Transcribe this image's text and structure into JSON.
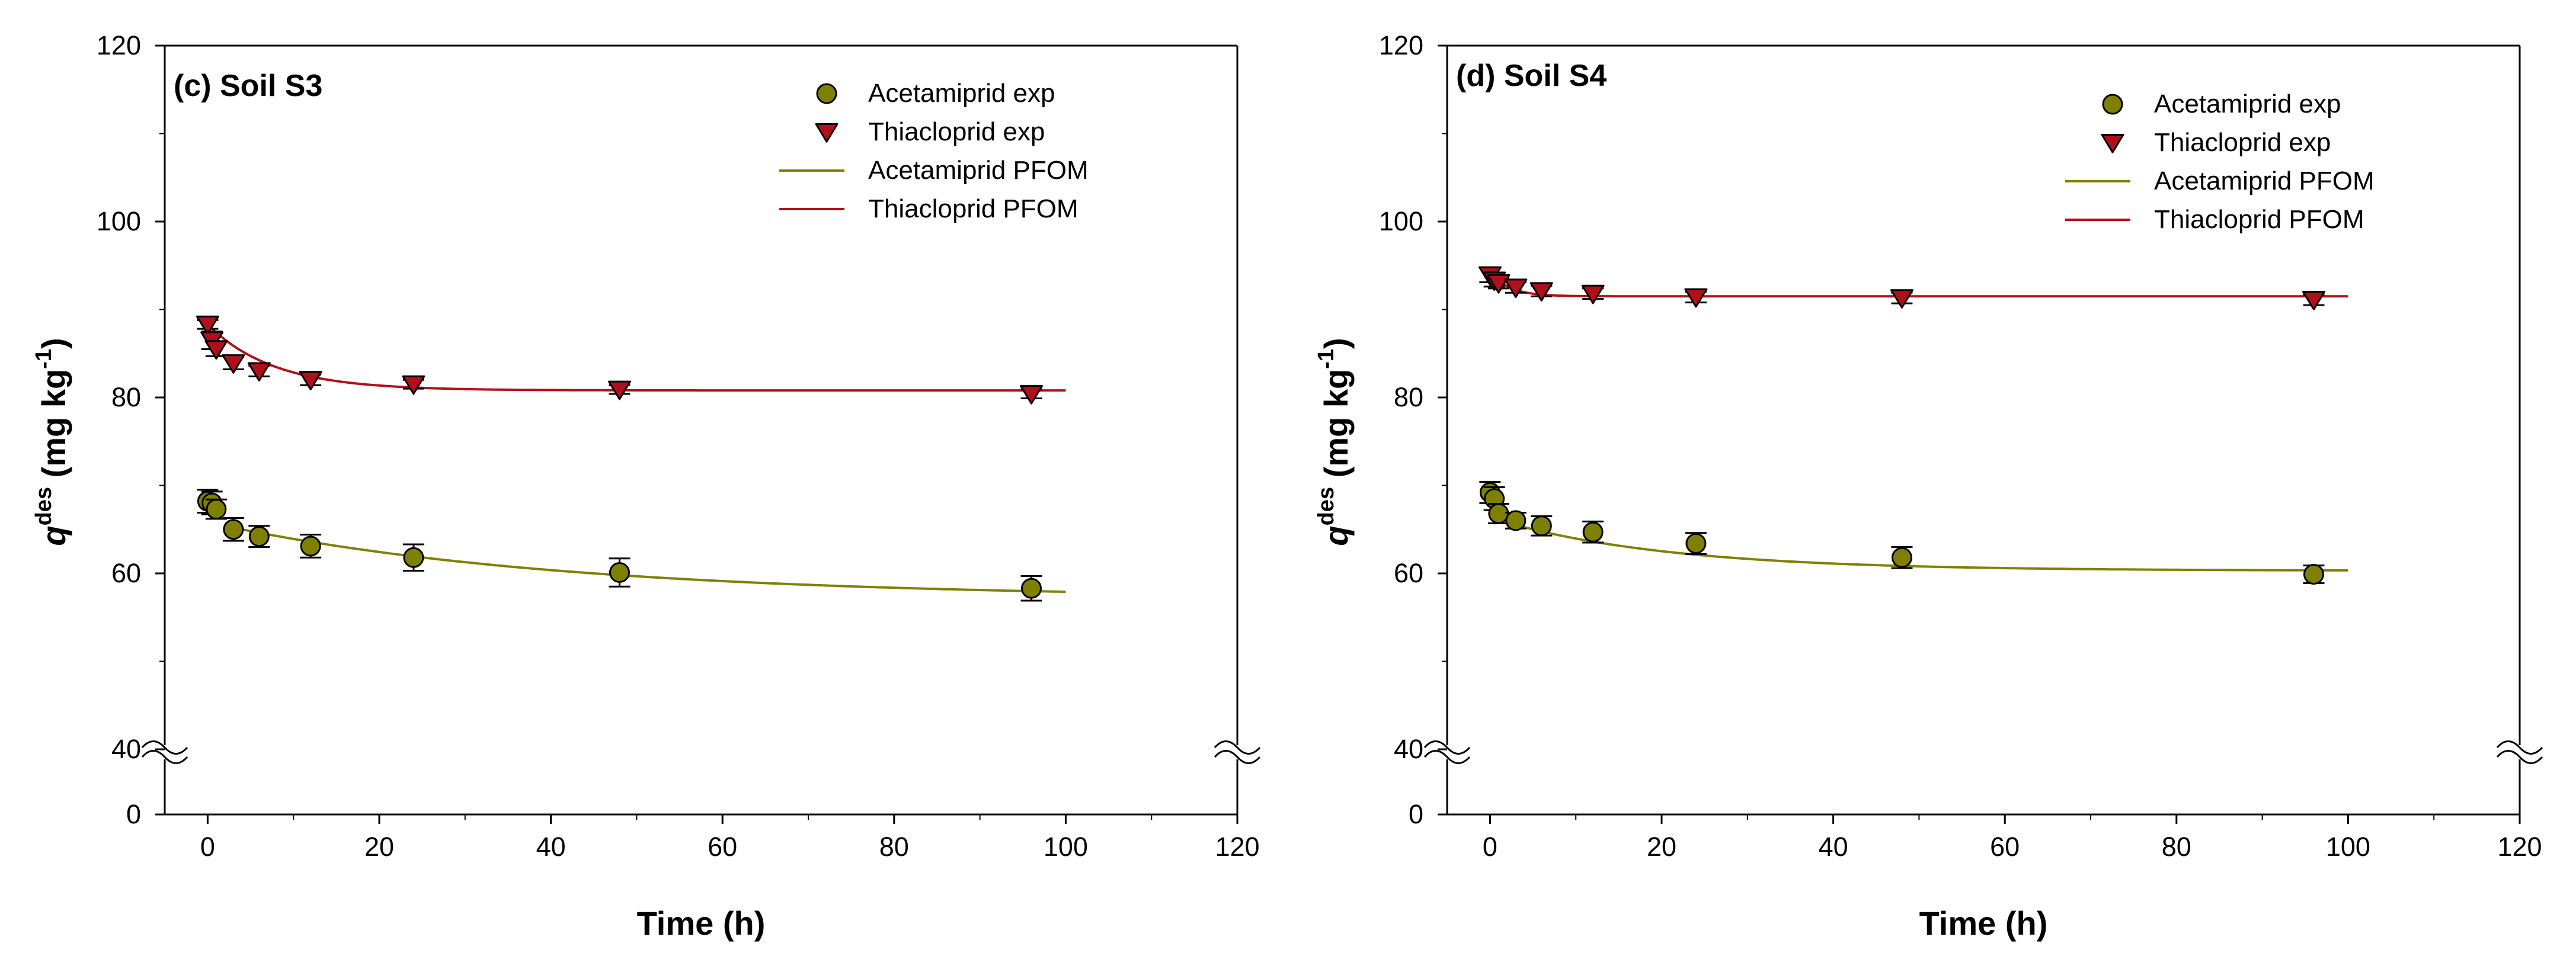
{
  "colors": {
    "acetamiprid": "#808000",
    "thiacloprid": "#b0101a",
    "axis": "#000000"
  },
  "chart_data": [
    {
      "type": "scatter",
      "title": "(c) Soil S3",
      "xlabel": "Time (h)",
      "ylabel_main": "q",
      "ylabel_sup": "des",
      "ylabel_unit_a": " (mg kg",
      "ylabel_unit_sup": "-1",
      "ylabel_unit_b": ")",
      "xlim": [
        -5,
        120
      ],
      "xticks": [
        0,
        20,
        40,
        60,
        80,
        100,
        120
      ],
      "yticks_upper": [
        40,
        60,
        80,
        100,
        120
      ],
      "ytick_lower": 0,
      "axis_break": "between 0 and 40",
      "legend": [
        "Acetamiprid exp",
        "Thiacloprid exp",
        "Acetamiprid PFOM",
        "Thiacloprid PFOM"
      ],
      "series": [
        {
          "name": "Acetamiprid exp",
          "marker": "circle",
          "x": [
            0,
            0.5,
            1,
            3,
            6,
            12,
            24,
            48,
            96
          ],
          "y": [
            68.2,
            68.0,
            67.3,
            65.0,
            64.2,
            63.1,
            61.8,
            60.1,
            58.3
          ],
          "err": [
            1.3,
            1.3,
            1.1,
            1.3,
            1.2,
            1.3,
            1.5,
            1.6,
            1.4
          ]
        },
        {
          "name": "Thiacloprid exp",
          "marker": "triangle-down",
          "x": [
            0,
            0.5,
            1,
            3,
            6,
            12,
            24,
            48,
            96
          ],
          "y": [
            88.3,
            86.5,
            85.5,
            83.9,
            83.0,
            82.0,
            81.5,
            80.9,
            80.4
          ],
          "err": [
            0.5,
            1.0,
            0.8,
            0.7,
            0.6,
            0.6,
            0.5,
            0.5,
            0.5
          ]
        },
        {
          "name": "Acetamiprid PFOM",
          "model": {
            "qe": 57.2,
            "a": 8.0,
            "k": 0.025,
            "x0": 3
          }
        },
        {
          "name": "Thiacloprid PFOM",
          "model": {
            "qe": 80.8,
            "a": 7.5,
            "k": 0.13,
            "x0": 0
          }
        }
      ]
    },
    {
      "type": "scatter",
      "title": "(d) Soil S4",
      "xlabel": "Time (h)",
      "ylabel_main": "q",
      "ylabel_sup": "des",
      "ylabel_unit_a": " (mg kg",
      "ylabel_unit_sup": "-1",
      "ylabel_unit_b": ")",
      "xlim": [
        -5,
        120
      ],
      "xticks": [
        0,
        20,
        40,
        60,
        80,
        100,
        120
      ],
      "yticks_upper": [
        40,
        60,
        80,
        100,
        120
      ],
      "ytick_lower": 0,
      "axis_break": "between 0 and 40",
      "legend": [
        "Acetamiprid exp",
        "Thiacloprid exp",
        "Acetamiprid PFOM",
        "Thiacloprid PFOM"
      ],
      "series": [
        {
          "name": "Acetamiprid exp",
          "marker": "circle",
          "x": [
            0,
            0.5,
            1,
            3,
            6,
            12,
            24,
            48,
            96
          ],
          "y": [
            69.2,
            68.5,
            66.8,
            66.0,
            65.4,
            64.7,
            63.4,
            61.8,
            59.9
          ],
          "err": [
            1.2,
            1.3,
            1.1,
            0.9,
            1.1,
            1.2,
            1.2,
            1.2,
            1.0
          ]
        },
        {
          "name": "Thiacloprid exp",
          "marker": "triangle-down",
          "x": [
            0,
            0.5,
            1,
            3,
            6,
            12,
            24,
            48,
            96
          ],
          "y": [
            93.9,
            93.3,
            93.0,
            92.5,
            92.1,
            91.8,
            91.4,
            91.3,
            91.1
          ],
          "err": [
            0.8,
            0.7,
            0.6,
            0.6,
            0.6,
            0.6,
            0.6,
            0.6,
            0.6
          ]
        },
        {
          "name": "Acetamiprid PFOM",
          "model": {
            "qe": 60.3,
            "a": 5.2,
            "k": 0.05,
            "x0": 3
          }
        },
        {
          "name": "Thiacloprid PFOM",
          "model": {
            "qe": 91.5,
            "a": 2.8,
            "k": 0.45,
            "x0": 0
          }
        }
      ]
    }
  ]
}
